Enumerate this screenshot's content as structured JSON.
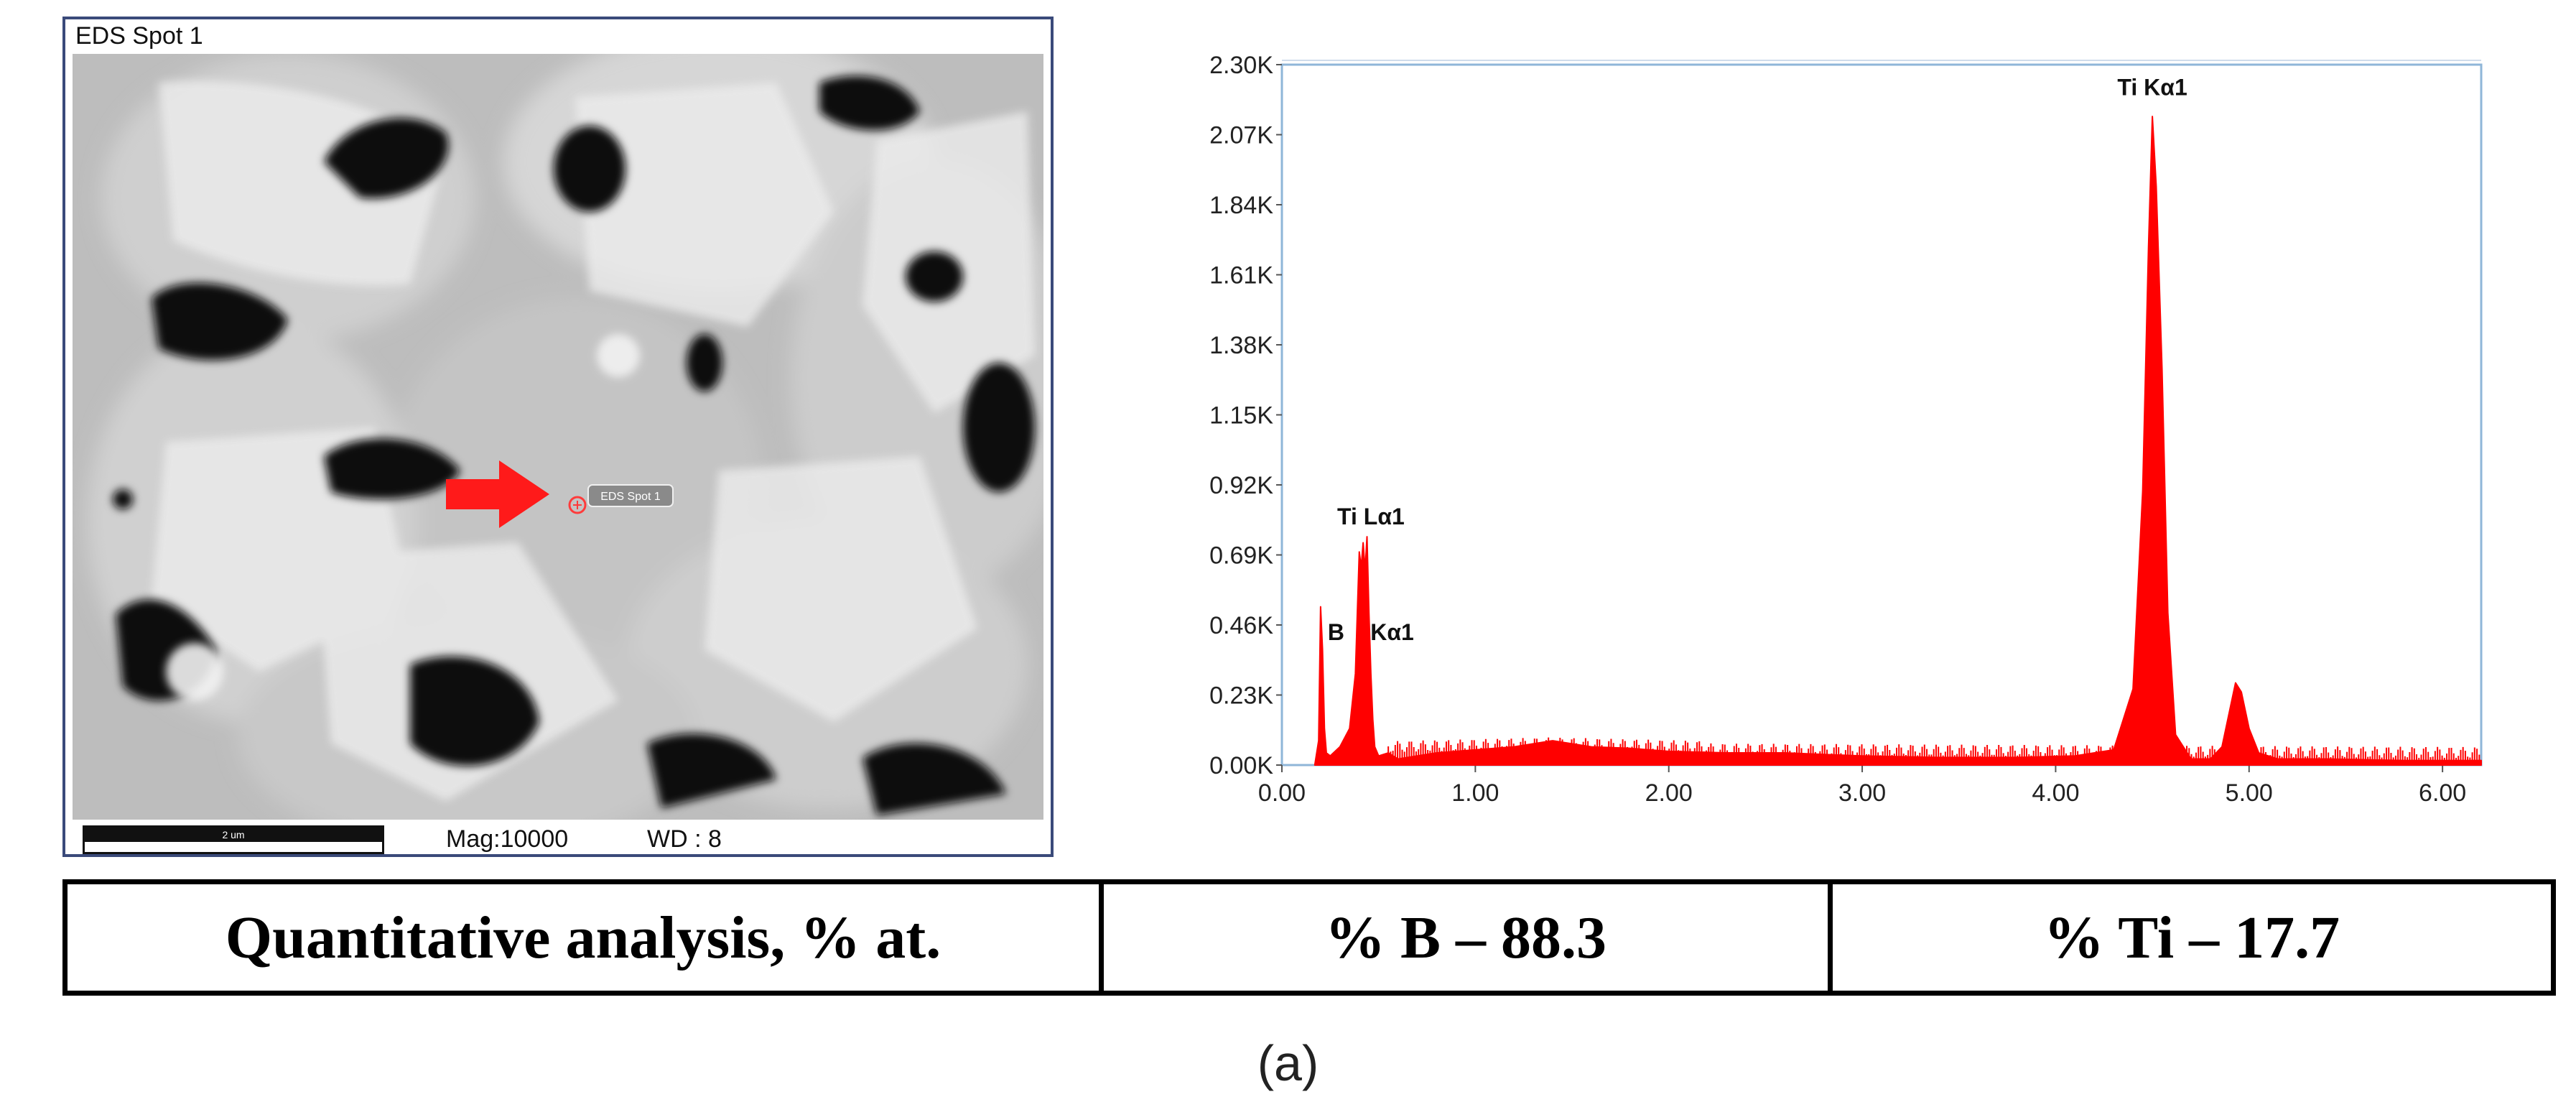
{
  "sem": {
    "title": "EDS Spot 1",
    "spot_label": "EDS Spot 1",
    "scale_bar_label": "2 um",
    "mag_text": "Mag:10000",
    "wd_text": "WD : 8",
    "arrow_color": "#ff1a1a"
  },
  "chart_data": {
    "type": "area",
    "title": "",
    "xlabel": "",
    "ylabel": "",
    "xlim": [
      0,
      6.2
    ],
    "ylim": [
      0,
      2300
    ],
    "x_ticks": [
      "0.00",
      "1.00",
      "2.00",
      "3.00",
      "4.00",
      "5.00",
      "6.00"
    ],
    "y_ticks": [
      "0.00K",
      "0.23K",
      "0.46K",
      "0.69K",
      "0.92K",
      "1.15K",
      "1.38K",
      "1.61K",
      "1.84K",
      "2.07K",
      "2.30K"
    ],
    "series": [
      {
        "color": "#ff0000",
        "x": [
          0.17,
          0.19,
          0.2,
          0.21,
          0.22,
          0.23,
          0.25,
          0.3,
          0.35,
          0.38,
          0.4,
          0.41,
          0.42,
          0.43,
          0.44,
          0.45,
          0.46,
          0.47,
          0.48,
          0.5,
          0.55,
          0.6,
          0.7,
          0.8,
          1.0,
          1.2,
          1.4,
          1.6,
          1.8,
          2.0,
          2.3,
          2.6,
          3.0,
          3.4,
          3.8,
          4.1,
          4.3,
          4.4,
          4.45,
          4.48,
          4.5,
          4.52,
          4.55,
          4.58,
          4.62,
          4.7,
          4.8,
          4.86,
          4.9,
          4.93,
          4.96,
          5.0,
          5.05,
          5.15,
          5.4,
          5.8,
          6.2
        ],
        "y": [
          0,
          80,
          520,
          380,
          120,
          40,
          30,
          60,
          120,
          300,
          700,
          650,
          730,
          640,
          750,
          500,
          300,
          150,
          60,
          30,
          40,
          20,
          30,
          40,
          50,
          60,
          80,
          60,
          55,
          45,
          40,
          40,
          30,
          25,
          25,
          30,
          50,
          250,
          900,
          1700,
          2130,
          1900,
          1300,
          500,
          100,
          20,
          20,
          60,
          180,
          270,
          240,
          120,
          40,
          20,
          20,
          15,
          15
        ]
      }
    ],
    "annotations": [
      {
        "text": "Ti Lα1",
        "x": 0.46,
        "y": 790
      },
      {
        "text": "B",
        "x": 0.28,
        "y": 410
      },
      {
        "text": "Kα1",
        "x": 0.57,
        "y": 410
      },
      {
        "text": "Ti Kα1",
        "x": 4.5,
        "y": 2200
      }
    ]
  },
  "table": {
    "cells": [
      "Quantitative analysis, % at.",
      "% B – 88.3",
      "% Ti – 17.7"
    ]
  },
  "caption": "(a)"
}
